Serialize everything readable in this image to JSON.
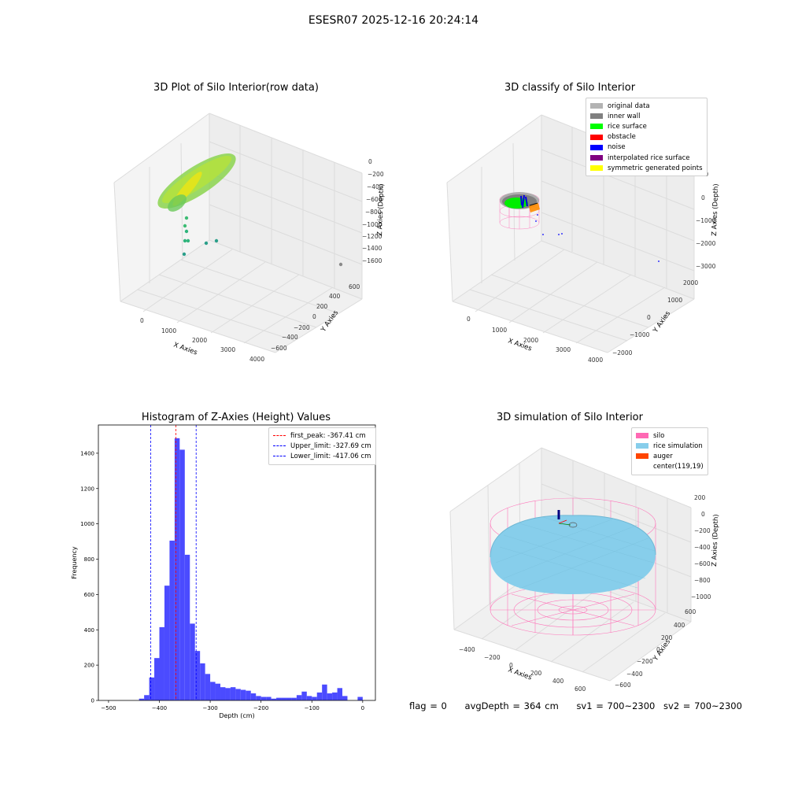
{
  "suptitle": "ESESR07 2025-12-16 20:24:14",
  "panels": {
    "raw": {
      "title": "3D Plot of Silo Interior(row data)",
      "xlabel": "X Axies",
      "ylabel": "Y Axies",
      "zlabel": "Z Axies (Depth)",
      "x_ticks": [
        "0",
        "1000",
        "2000",
        "3000",
        "4000"
      ],
      "y_ticks": [
        "600",
        "400",
        "200",
        "0",
        "−200",
        "−400",
        "−600"
      ],
      "z_ticks": [
        "0",
        "−200",
        "−400",
        "−600",
        "−800",
        "−1000",
        "−1200",
        "−1400",
        "−1600"
      ]
    },
    "classify": {
      "title": "3D classify of Silo Interior",
      "xlabel": "X Axies",
      "ylabel": "Y Axies",
      "zlabel": "Z Axies (Depth)",
      "x_ticks": [
        "0",
        "1000",
        "2000",
        "3000",
        "4000"
      ],
      "y_ticks": [
        "2000",
        "1000",
        "0",
        "−1000",
        "−2000"
      ],
      "z_ticks": [
        "1000",
        "0",
        "−1000",
        "−2000",
        "−3000"
      ],
      "legend": [
        {
          "label": "original data",
          "color": "#b3b3b3"
        },
        {
          "label": "inner wall",
          "color": "#808080"
        },
        {
          "label": "rice surface",
          "color": "#00ff00"
        },
        {
          "label": "obstacle",
          "color": "#ff0000"
        },
        {
          "label": "noise",
          "color": "#0000ff"
        },
        {
          "label": "interpolated rice surface",
          "color": "#800080"
        },
        {
          "label": "symmetric generated points",
          "color": "#ffff00"
        }
      ]
    },
    "simulation": {
      "title": "3D simulation of Silo Interior",
      "xlabel": "X Axies",
      "ylabel": "Y Axies",
      "zlabel": "Z Axies (Depth)",
      "x_ticks": [
        "−400",
        "−200",
        "0",
        "200",
        "400",
        "600"
      ],
      "y_ticks": [
        "600",
        "400",
        "200",
        "0",
        "−200",
        "−400",
        "−600"
      ],
      "z_ticks": [
        "200",
        "0",
        "−200",
        "−400",
        "−600",
        "−800",
        "−1000"
      ],
      "legend": [
        {
          "label": "silo",
          "color": "#ff69b4"
        },
        {
          "label": "rice simulation",
          "color": "#87ceeb"
        },
        {
          "label": "auger",
          "color": "#ff4500"
        },
        {
          "label": "center(119,19)",
          "color": "#ffffff"
        }
      ]
    }
  },
  "footer": {
    "flag": "flag = 0",
    "avg": "avgDepth = 364 cm",
    "sv1": "sv1 = 700~2300",
    "sv2": "sv2 = 700~2300"
  },
  "chart_data": [
    {
      "type": "bar",
      "title": "Histogram of Z-Axies (Height) Values",
      "xlabel": "Depth (cm)",
      "ylabel": "Frequency",
      "xlim": [
        -520,
        25
      ],
      "ylim": [
        0,
        1560
      ],
      "x_ticks": [
        -500,
        -400,
        -300,
        -200,
        -100,
        0
      ],
      "y_ticks": [
        0,
        200,
        400,
        600,
        800,
        1000,
        1200,
        1400
      ],
      "bin_width": 10,
      "bins": [
        {
          "x": -440,
          "y": 10
        },
        {
          "x": -430,
          "y": 30
        },
        {
          "x": -420,
          "y": 130
        },
        {
          "x": -410,
          "y": 240
        },
        {
          "x": -400,
          "y": 415
        },
        {
          "x": -390,
          "y": 650
        },
        {
          "x": -380,
          "y": 905
        },
        {
          "x": -370,
          "y": 1485
        },
        {
          "x": -360,
          "y": 1420
        },
        {
          "x": -350,
          "y": 825
        },
        {
          "x": -340,
          "y": 435
        },
        {
          "x": -330,
          "y": 280
        },
        {
          "x": -320,
          "y": 210
        },
        {
          "x": -310,
          "y": 150
        },
        {
          "x": -300,
          "y": 105
        },
        {
          "x": -290,
          "y": 95
        },
        {
          "x": -280,
          "y": 75
        },
        {
          "x": -270,
          "y": 70
        },
        {
          "x": -260,
          "y": 75
        },
        {
          "x": -250,
          "y": 65
        },
        {
          "x": -240,
          "y": 60
        },
        {
          "x": -230,
          "y": 55
        },
        {
          "x": -220,
          "y": 40
        },
        {
          "x": -210,
          "y": 25
        },
        {
          "x": -200,
          "y": 20
        },
        {
          "x": -190,
          "y": 20
        },
        {
          "x": -180,
          "y": 10
        },
        {
          "x": -170,
          "y": 15
        },
        {
          "x": -160,
          "y": 15
        },
        {
          "x": -150,
          "y": 15
        },
        {
          "x": -140,
          "y": 15
        },
        {
          "x": -130,
          "y": 30
        },
        {
          "x": -120,
          "y": 50
        },
        {
          "x": -110,
          "y": 25
        },
        {
          "x": -100,
          "y": 20
        },
        {
          "x": -90,
          "y": 45
        },
        {
          "x": -80,
          "y": 90
        },
        {
          "x": -70,
          "y": 40
        },
        {
          "x": -60,
          "y": 45
        },
        {
          "x": -50,
          "y": 70
        },
        {
          "x": -40,
          "y": 25
        },
        {
          "x": -10,
          "y": 20
        }
      ],
      "vlines": [
        {
          "label": "first_peak: -367.41 cm",
          "x": -367.41,
          "color": "#ff0000"
        },
        {
          "label": "Upper_limit: -327.69 cm",
          "x": -327.69,
          "color": "#0000ff"
        },
        {
          "label": "Lower_limit: -417.06 cm",
          "x": -417.06,
          "color": "#0000ff"
        }
      ],
      "bar_color": "#4b4bff",
      "legend_position": "top-right",
      "grid": false
    }
  ]
}
